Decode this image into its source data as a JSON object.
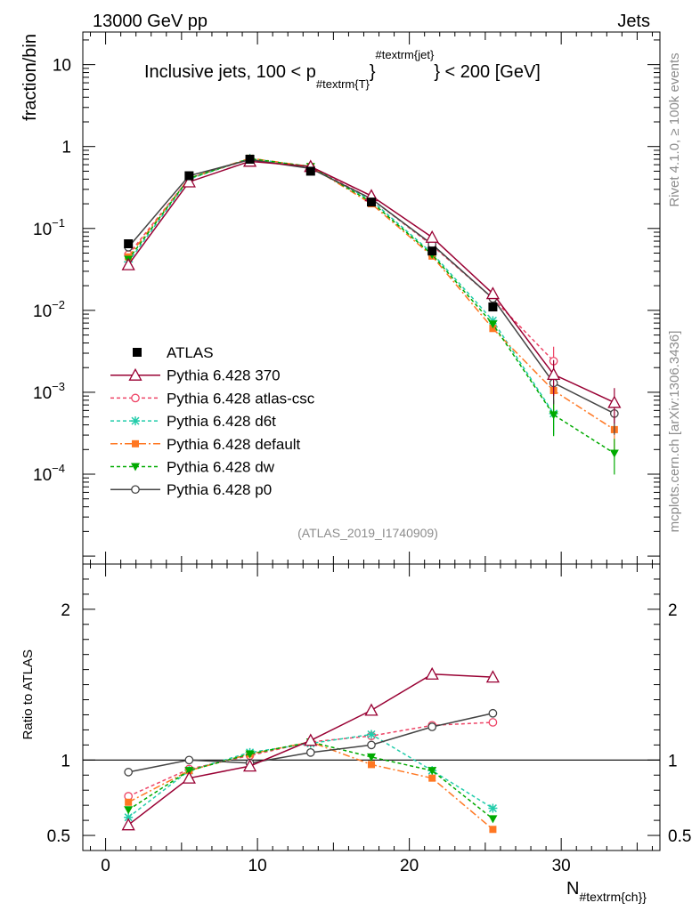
{
  "header": {
    "left": "13000 GeV pp",
    "right": "Jets",
    "side_rivet": "Rivet 4.1.0, ≥ 100k events",
    "side_site": "mcplots.cern.ch [arXiv:1306.3436]",
    "analysis_id": "(ATLAS_2019_I1740909)"
  },
  "chart_data": {
    "type": "line",
    "title_prefix": "Inclusive jets, 100 < p",
    "title_sub": "#textrm{T}",
    "title_sup": "#textrm{jet}",
    "title_suffix": "} < 200 [GeV]",
    "ylabel": "fraction/bin",
    "ratio_ylabel": "Ratio to ATLAS",
    "xlabel_main": "N",
    "xlabel_sub": "#textrm{ch}}",
    "xlim": [
      -1.5,
      36.5
    ],
    "ylim": [
      8e-06,
      25
    ],
    "ratio_ylim": [
      0.4,
      2.3
    ],
    "x_ticks": [
      {
        "v": 0,
        "label": "0"
      },
      {
        "v": 10,
        "label": "10"
      },
      {
        "v": 20,
        "label": "20"
      },
      {
        "v": 30,
        "label": "30"
      }
    ],
    "y_ticks": [
      {
        "v": 10,
        "label": "10"
      },
      {
        "v": 1,
        "label": "1"
      },
      {
        "v": 0.1,
        "label": "10",
        "exp": "−1"
      },
      {
        "v": 0.01,
        "label": "10",
        "exp": "−2"
      },
      {
        "v": 0.001,
        "label": "10",
        "exp": "−3"
      },
      {
        "v": 0.0001,
        "label": "10",
        "exp": "−4"
      }
    ],
    "ratio_ticks": [
      {
        "v": 0.5,
        "label": "0.5"
      },
      {
        "v": 1,
        "label": "1"
      },
      {
        "v": 2,
        "label": "2"
      }
    ],
    "x": [
      1.5,
      5.5,
      9.5,
      13.5,
      17.5,
      21.5,
      25.5,
      29.5,
      33.5
    ],
    "data": {
      "name": "ATLAS",
      "values": [
        0.065,
        0.44,
        0.7,
        0.5,
        0.21,
        0.053,
        0.011,
        null,
        null
      ]
    },
    "series": [
      {
        "name": "Pythia 6.428 370",
        "color": "#990033",
        "dash": "",
        "marker": "triangle-open",
        "values": [
          0.036,
          0.37,
          0.66,
          0.57,
          0.25,
          0.078,
          0.016,
          0.00165,
          0.00075
        ],
        "ratio": [
          0.57,
          0.88,
          0.96,
          1.13,
          1.33,
          1.57,
          1.55,
          null,
          null
        ]
      },
      {
        "name": "Pythia 6.428 atlas-csc",
        "color": "#ee4466",
        "dash": "4,3",
        "marker": "circle-open",
        "values": [
          0.048,
          0.41,
          0.7,
          0.56,
          0.23,
          0.062,
          0.014,
          0.0024,
          null
        ],
        "ratio": [
          0.76,
          0.94,
          1.03,
          1.12,
          1.16,
          1.23,
          1.25,
          null,
          null
        ]
      },
      {
        "name": "Pythia 6.428 d6t",
        "color": "#22ccaa",
        "dash": "4,3",
        "marker": "star",
        "values": [
          0.039,
          0.4,
          0.72,
          0.56,
          0.22,
          0.05,
          0.0075,
          0.00055,
          null
        ],
        "ratio": [
          0.62,
          0.93,
          1.05,
          1.11,
          1.17,
          0.93,
          0.68,
          null,
          null
        ]
      },
      {
        "name": "Pythia 6.428 default",
        "color": "#ff7722",
        "dash": "8,3,2,3",
        "marker": "square",
        "values": [
          0.045,
          0.41,
          0.72,
          0.57,
          0.2,
          0.046,
          0.006,
          0.00105,
          0.00035
        ],
        "ratio": [
          0.72,
          0.93,
          1.04,
          1.12,
          0.97,
          0.88,
          0.54,
          null,
          null
        ]
      },
      {
        "name": "Pythia 6.428 dw",
        "color": "#00aa00",
        "dash": "4,3",
        "marker": "triangle-down",
        "values": [
          0.042,
          0.41,
          0.71,
          0.57,
          0.21,
          0.048,
          0.0068,
          0.00053,
          0.00018
        ],
        "ratio": [
          0.67,
          0.93,
          1.04,
          1.12,
          1.02,
          0.93,
          0.61,
          null,
          null
        ]
      },
      {
        "name": "Pythia 6.428 p0",
        "color": "#444444",
        "dash": "",
        "marker": "circle-open",
        "values": [
          0.059,
          0.44,
          0.69,
          0.54,
          0.23,
          0.064,
          0.014,
          0.0013,
          0.00055
        ],
        "ratio": [
          0.92,
          1.0,
          0.98,
          1.05,
          1.1,
          1.22,
          1.31,
          null,
          null
        ]
      }
    ]
  }
}
